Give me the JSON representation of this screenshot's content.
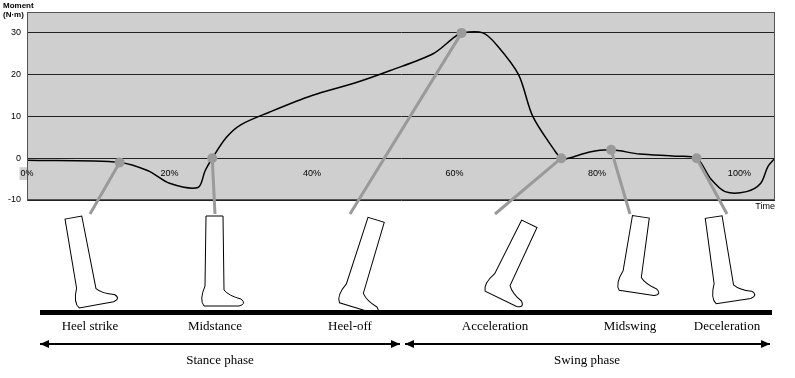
{
  "chart_data": {
    "type": "line",
    "x_label": "Time",
    "y_label": "Moment (N·m)",
    "x": [
      0,
      13,
      17,
      20,
      24,
      25,
      26,
      28,
      30,
      34,
      40,
      46,
      51,
      57,
      60,
      61,
      64,
      66,
      69,
      71,
      74,
      75,
      76,
      79,
      82,
      86,
      91,
      94,
      96,
      98,
      101,
      103,
      104,
      105
    ],
    "values": [
      -0.5,
      -1,
      -3,
      -6,
      -7,
      -3,
      0,
      5,
      8,
      11,
      15,
      18,
      21,
      25,
      29,
      30,
      30,
      27,
      20,
      10,
      2,
      0,
      0,
      1.5,
      2,
      1,
      0.5,
      0,
      -5,
      -8,
      -8,
      -6,
      -2,
      0
    ],
    "color": "#000000",
    "xlim": [
      0,
      105
    ],
    "xticks": [
      {
        "value": 0,
        "label": "0%"
      },
      {
        "value": 20,
        "label": "20%"
      },
      {
        "value": 40,
        "label": "40%"
      },
      {
        "value": 60,
        "label": "60%"
      },
      {
        "value": 80,
        "label": "80%"
      },
      {
        "value": 100,
        "label": "100%"
      }
    ],
    "ylim": [
      -10,
      35
    ],
    "yticks": [
      -10,
      0,
      10,
      20,
      30
    ],
    "grid": true,
    "annotations": [
      {
        "text": "Heel strike",
        "x": 13,
        "y": -1
      },
      {
        "text": "Midstance",
        "x": 26,
        "y": 0
      },
      {
        "text": "Heel-off",
        "x": 61,
        "y": 30
      },
      {
        "text": "Acceleration",
        "x": 75,
        "y": 0
      },
      {
        "text": "Midswing",
        "x": 82,
        "y": 2
      },
      {
        "text": "Deceleration",
        "x": 94,
        "y": 0
      }
    ],
    "phases": [
      "Stance phase",
      "Swing phase"
    ]
  }
}
